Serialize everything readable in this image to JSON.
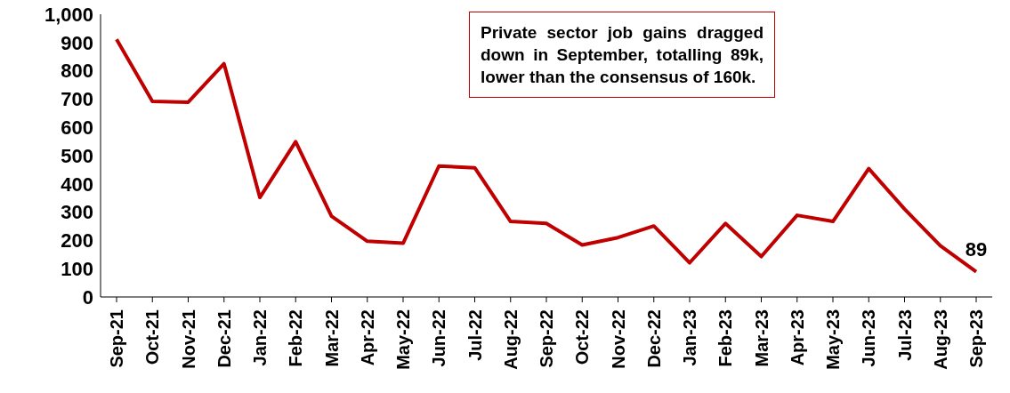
{
  "chart_data": {
    "type": "line",
    "categories": [
      "Sep-21",
      "Oct-21",
      "Nov-21",
      "Dec-21",
      "Jan-22",
      "Feb-22",
      "Mar-22",
      "Apr-22",
      "May-22",
      "Jun-22",
      "Jul-22",
      "Aug-22",
      "Sep-22",
      "Oct-22",
      "Nov-22",
      "Dec-22",
      "Jan-23",
      "Feb-23",
      "Mar-23",
      "Apr-23",
      "May-23",
      "Jun-23",
      "Jul-23",
      "Aug-23",
      "Sep-23"
    ],
    "series": [
      {
        "color": "#c00000",
        "values": [
          911,
          692,
          689,
          825,
          352,
          549,
          286,
          197,
          190,
          463,
          457,
          267,
          260,
          184,
          210,
          251,
          121,
          260,
          143,
          289,
          267,
          454,
          311,
          181,
          89
        ],
        "value_labels": [
          null,
          null,
          null,
          null,
          null,
          null,
          null,
          null,
          null,
          null,
          null,
          null,
          null,
          null,
          null,
          null,
          null,
          null,
          null,
          null,
          null,
          null,
          null,
          null,
          "89"
        ]
      }
    ],
    "ylim": [
      0,
      1000
    ],
    "yticks": [
      0,
      100,
      200,
      300,
      400,
      500,
      600,
      700,
      800,
      900,
      {
        "value": 1000,
        "label": "1,000"
      }
    ],
    "grid": false,
    "legend": false,
    "marker": "none",
    "line_style": "solid",
    "annotations": [
      "Private sector job gains dragged down in September, totalling 89k, lower than the consensus of 160k."
    ]
  }
}
